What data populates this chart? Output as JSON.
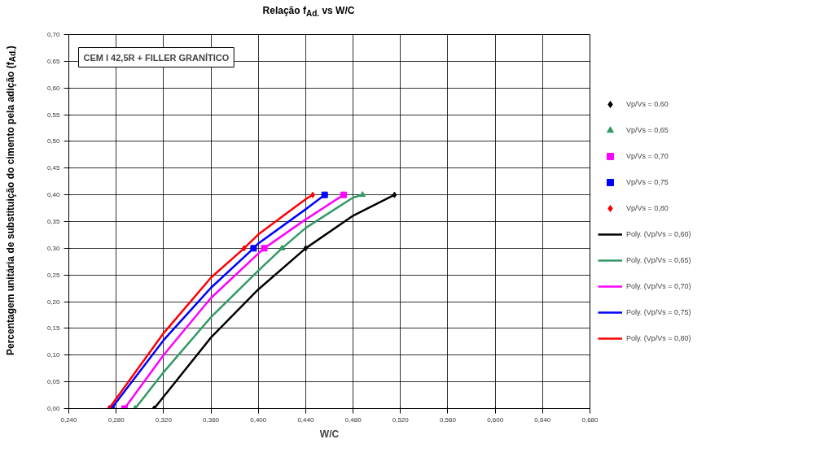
{
  "chart_data": {
    "type": "line",
    "title": "Relação f$_{Ad.}$ vs W/C",
    "xlabel": "W/C",
    "ylabel": "Percentagem unitária de substituição do cimento pela adição (f$_{Ad.}$)",
    "annotations": [
      "CEM I 42,5R + FILLER GRANÍTICO"
    ],
    "xlim": [
      0.24,
      0.68
    ],
    "xticks": [
      {
        "value": 0.24,
        "label": "0,240"
      },
      {
        "value": 0.28,
        "label": "0,280"
      },
      {
        "value": 0.32,
        "label": "0,320"
      },
      {
        "value": 0.36,
        "label": "0,360"
      },
      {
        "value": 0.4,
        "label": "0,400"
      },
      {
        "value": 0.44,
        "label": "0,440"
      },
      {
        "value": 0.48,
        "label": "0,480"
      },
      {
        "value": 0.52,
        "label": "0,520"
      },
      {
        "value": 0.56,
        "label": "0,560"
      },
      {
        "value": 0.6,
        "label": "0,600"
      },
      {
        "value": 0.64,
        "label": "0,640"
      },
      {
        "value": 0.68,
        "label": "0,680"
      }
    ],
    "ylim": [
      0,
      0.7
    ],
    "yticks": [
      {
        "value": 0,
        "label": "0,00"
      },
      {
        "value": 0.05,
        "label": "0,05"
      },
      {
        "value": 0.1,
        "label": "0,10"
      },
      {
        "value": 0.15,
        "label": "0,15"
      },
      {
        "value": 0.2,
        "label": "0,20"
      },
      {
        "value": 0.25,
        "label": "0,25"
      },
      {
        "value": 0.3,
        "label": "0,30"
      },
      {
        "value": 0.35,
        "label": "0,35"
      },
      {
        "value": 0.4,
        "label": "0,40"
      },
      {
        "value": 0.45,
        "label": "0,45"
      },
      {
        "value": 0.5,
        "label": "0,50"
      },
      {
        "value": 0.55,
        "label": "0,55"
      },
      {
        "value": 0.6,
        "label": "0,60"
      },
      {
        "value": 0.65,
        "label": "0,65"
      },
      {
        "value": 0.7,
        "label": "0,70"
      }
    ],
    "grid": true,
    "legend": "right",
    "series": [
      {
        "name": "Vp/Vs = 0,60",
        "type": "scatter",
        "marker": "diamond",
        "color": "#000000",
        "x": [
          0.312,
          0.44,
          0.515
        ],
        "values": [
          0,
          0.3,
          0.4
        ]
      },
      {
        "name": "Vp/Vs = 0,65",
        "type": "scatter",
        "marker": "triangle",
        "color": "#339966",
        "x": [
          0.296,
          0.42,
          0.488
        ],
        "values": [
          0,
          0.3,
          0.4
        ]
      },
      {
        "name": "Vp/Vs = 0,70",
        "type": "scatter",
        "marker": "square",
        "color": "#ff00ff",
        "x": [
          0.287,
          0.405,
          0.472
        ],
        "values": [
          0,
          0.3,
          0.4
        ]
      },
      {
        "name": "Vp/Vs = 0,75",
        "type": "scatter",
        "marker": "square",
        "color": "#0000ff",
        "x": [
          0.276,
          0.396,
          0.456
        ],
        "values": [
          0,
          0.3,
          0.4
        ]
      },
      {
        "name": "Vp/Vs = 0,80",
        "type": "scatter",
        "marker": "diamond",
        "color": "#ff0000",
        "x": [
          0.274,
          0.388,
          0.446
        ],
        "values": [
          0,
          0.3,
          0.4
        ]
      },
      {
        "name": "Poly. (Vp/Vs = 0,60)",
        "line_style": "solid",
        "color": "#000000",
        "x": [
          0.312,
          0.32,
          0.36,
          0.4,
          0.44,
          0.48,
          0.515
        ],
        "values": [
          0,
          0.022,
          0.133,
          0.223,
          0.3,
          0.361,
          0.4
        ]
      },
      {
        "name": "Poly. (Vp/Vs = 0,65)",
        "line_style": "solid",
        "color": "#339966",
        "x": [
          0.296,
          0.32,
          0.36,
          0.4,
          0.42,
          0.44,
          0.48,
          0.488
        ],
        "values": [
          0,
          0.068,
          0.171,
          0.258,
          0.3,
          0.338,
          0.395,
          0.4
        ]
      },
      {
        "name": "Poly. (Vp/Vs = 0,70)",
        "line_style": "solid",
        "color": "#ff00ff",
        "x": [
          0.287,
          0.32,
          0.36,
          0.4,
          0.405,
          0.44,
          0.472
        ],
        "values": [
          0,
          0.1,
          0.207,
          0.29,
          0.3,
          0.354,
          0.4
        ]
      },
      {
        "name": "Poly. (Vp/Vs = 0,75)",
        "line_style": "solid",
        "color": "#0000ff",
        "x": [
          0.276,
          0.32,
          0.36,
          0.396,
          0.4,
          0.44,
          0.456
        ],
        "values": [
          0,
          0.128,
          0.226,
          0.3,
          0.309,
          0.373,
          0.4
        ]
      },
      {
        "name": "Poly. (Vp/Vs = 0,80)",
        "line_style": "solid",
        "color": "#ff0000",
        "x": [
          0.274,
          0.32,
          0.36,
          0.388,
          0.4,
          0.44,
          0.446
        ],
        "values": [
          0,
          0.141,
          0.245,
          0.3,
          0.326,
          0.392,
          0.4
        ]
      }
    ]
  }
}
